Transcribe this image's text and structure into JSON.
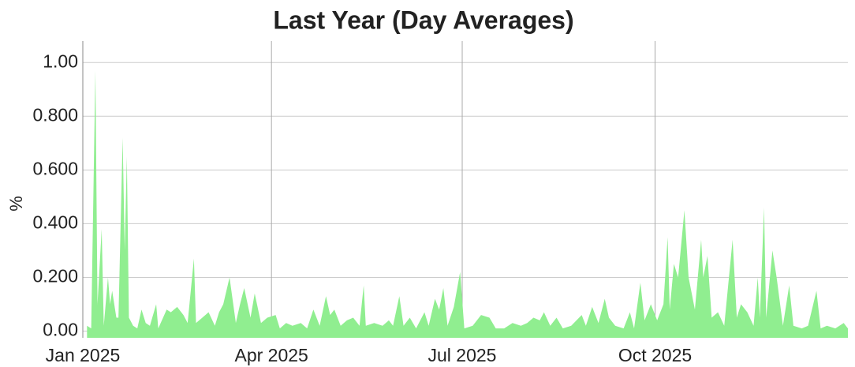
{
  "chart_data": {
    "type": "area",
    "title": "Last Year (Day Averages)",
    "y_label": "%",
    "color": "#90ee90",
    "grid": true,
    "xlim": [
      0,
      365
    ],
    "xticks": [
      {
        "value": 0,
        "label": "Jan 2025"
      },
      {
        "value": 90,
        "label": "Apr 2025"
      },
      {
        "value": 181,
        "label": "Jul 2025"
      },
      {
        "value": 273,
        "label": "Oct 2025"
      }
    ],
    "ylim": [
      -0.025,
      1.08
    ],
    "yticks": [
      {
        "value": 0,
        "label": "0.00"
      },
      {
        "value": 0.2,
        "label": "0.200"
      },
      {
        "value": 0.4,
        "label": "0.400"
      },
      {
        "value": 0.6,
        "label": "0.600"
      },
      {
        "value": 0.8,
        "label": "0.800"
      },
      {
        "value": 1,
        "label": "1.00"
      }
    ],
    "x": [
      2,
      4,
      6,
      7,
      9,
      10,
      12,
      13,
      14,
      16,
      17,
      19,
      20,
      21,
      22,
      24,
      26,
      28,
      30,
      32,
      35,
      36,
      40,
      42,
      45,
      48,
      50,
      53,
      54,
      57,
      60,
      63,
      65,
      67,
      70,
      73,
      75,
      77,
      80,
      82,
      85,
      88,
      92,
      94,
      97,
      100,
      104,
      107,
      110,
      113,
      116,
      118,
      120,
      123,
      126,
      129,
      132,
      134,
      135,
      139,
      143,
      146,
      148,
      151,
      153,
      156,
      159,
      163,
      165,
      168,
      170,
      172,
      174,
      177,
      180,
      182,
      186,
      190,
      194,
      197,
      201,
      205,
      209,
      212,
      215,
      218,
      220,
      223,
      226,
      229,
      233,
      238,
      240,
      243,
      246,
      249,
      251,
      254,
      258,
      261,
      263,
      266,
      268,
      271,
      274,
      277,
      279,
      280,
      282,
      284,
      287,
      289,
      292,
      295,
      296,
      298,
      300,
      303,
      306,
      310,
      312,
      314,
      317,
      320,
      322,
      323,
      325,
      326,
      329,
      331,
      334,
      337,
      339,
      343,
      346,
      350,
      352,
      355,
      359,
      363,
      365
    ],
    "values": [
      0.02,
      0.01,
      0.97,
      0.1,
      0.38,
      0.02,
      0.2,
      0.1,
      0.15,
      0.05,
      0.05,
      0.72,
      0.3,
      0.65,
      0.05,
      0.02,
      0.01,
      0.08,
      0.03,
      0.02,
      0.1,
      0.01,
      0.08,
      0.07,
      0.09,
      0.06,
      0.03,
      0.27,
      0.03,
      0.05,
      0.07,
      0.02,
      0.07,
      0.1,
      0.2,
      0.03,
      0.1,
      0.16,
      0.05,
      0.14,
      0.03,
      0.05,
      0.06,
      0.01,
      0.03,
      0.02,
      0.03,
      0.01,
      0.08,
      0.02,
      0.13,
      0.06,
      0.08,
      0.02,
      0.04,
      0.05,
      0.02,
      0.17,
      0.02,
      0.03,
      0.02,
      0.04,
      0.02,
      0.13,
      0.02,
      0.05,
      0.01,
      0.07,
      0.02,
      0.12,
      0.08,
      0.16,
      0.02,
      0.09,
      0.22,
      0.01,
      0.02,
      0.06,
      0.05,
      0.01,
      0.01,
      0.03,
      0.02,
      0.03,
      0.05,
      0.04,
      0.07,
      0.02,
      0.05,
      0.01,
      0.02,
      0.06,
      0.02,
      0.09,
      0.03,
      0.12,
      0.05,
      0.02,
      0.01,
      0.07,
      0.01,
      0.18,
      0.04,
      0.1,
      0.04,
      0.1,
      0.35,
      0.08,
      0.25,
      0.2,
      0.45,
      0.2,
      0.08,
      0.34,
      0.2,
      0.28,
      0.05,
      0.07,
      0.02,
      0.34,
      0.05,
      0.1,
      0.07,
      0.02,
      0.2,
      0.05,
      0.46,
      0.05,
      0.3,
      0.2,
      0.02,
      0.17,
      0.02,
      0.01,
      0.02,
      0.15,
      0.01,
      0.02,
      0.01,
      0.03,
      0.01
    ]
  }
}
